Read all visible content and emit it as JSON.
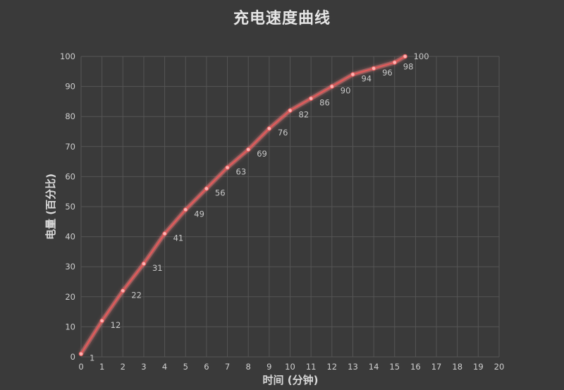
{
  "chart_data": {
    "type": "line",
    "title": "充电速度曲线",
    "xlabel": "时间 (分钟)",
    "ylabel": "电量 (百分比)",
    "xlim": [
      0,
      20
    ],
    "ylim": [
      0,
      100
    ],
    "xticks": [
      0,
      1,
      2,
      3,
      4,
      5,
      6,
      7,
      8,
      9,
      10,
      11,
      12,
      13,
      14,
      15,
      16,
      17,
      18,
      19,
      20
    ],
    "yticks": [
      0,
      10,
      20,
      30,
      40,
      50,
      60,
      70,
      80,
      90,
      100
    ],
    "grid": true,
    "colors": {
      "line": "#e35a5a",
      "glow": "#ff8080",
      "point": "#ffb3b3",
      "grid": "#555555",
      "axis_text": "#d0d0d0",
      "label_text": "#c8c8c8",
      "background": "#3a3a3a"
    },
    "series": [
      {
        "x": [
          0,
          1,
          2,
          3,
          4,
          5,
          6,
          7,
          8,
          9,
          10,
          11,
          12,
          13,
          14,
          15,
          15.5
        ],
        "y": [
          1,
          12,
          22,
          31,
          41,
          49,
          56,
          63,
          69,
          76,
          82,
          86,
          90,
          94,
          96,
          98,
          100
        ],
        "labels": [
          "1",
          "12",
          "22",
          "31",
          "41",
          "49",
          "56",
          "63",
          "69",
          "76",
          "82",
          "86",
          "90",
          "94",
          "96",
          "98",
          "100"
        ]
      }
    ]
  }
}
